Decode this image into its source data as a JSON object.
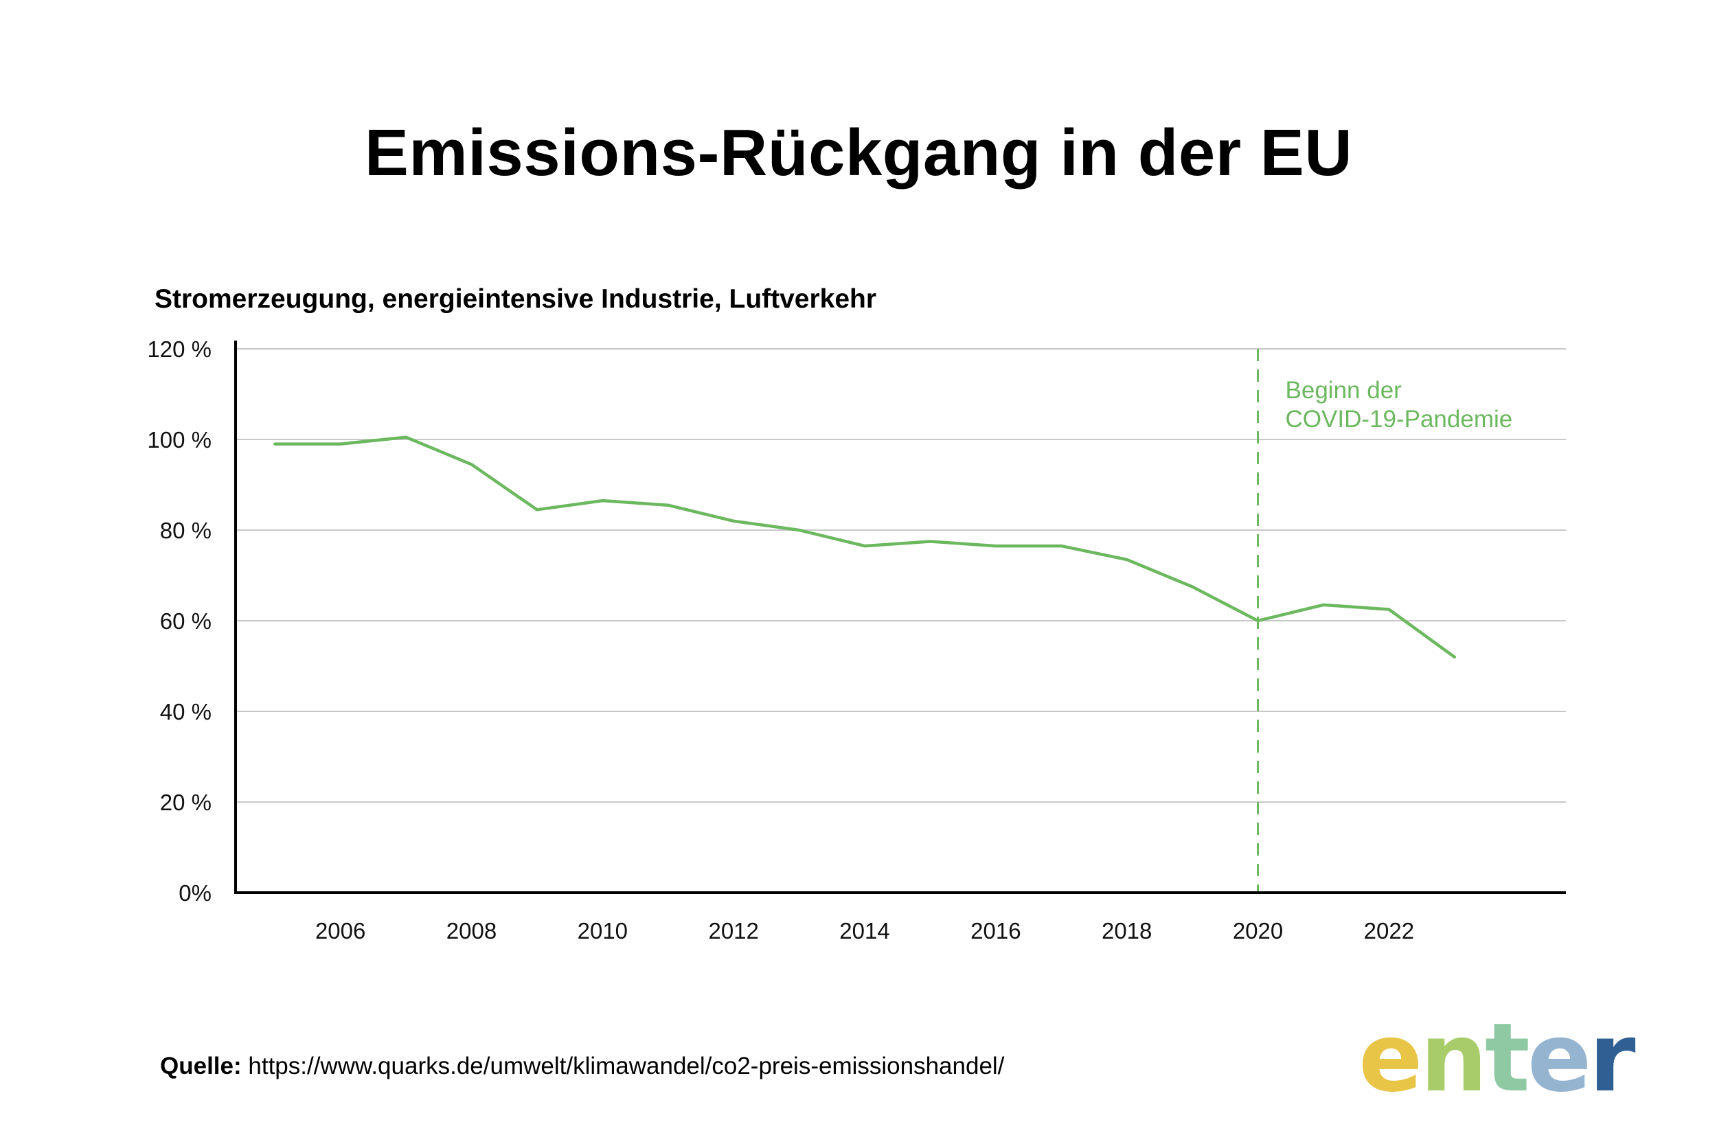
{
  "title": "Emissions-Rückgang in der EU",
  "subtitle": "Stromerzeugung, energieintensive Industrie, Luftverkehr",
  "source": {
    "label": "Quelle:",
    "url": "https://www.quarks.de/umwelt/klimawandel/co2-preis-emissionshandel/"
  },
  "logo": {
    "text": "enter",
    "letters": [
      "e",
      "n",
      "t",
      "e",
      "r"
    ],
    "colors": [
      "#e8c547",
      "#a9cc6a",
      "#8fc9a4",
      "#94b4d0",
      "#2f5f93"
    ]
  },
  "colors": {
    "line": "#6cb85f",
    "grid": "#c8c8c8",
    "axis": "#000000"
  },
  "chart_data": {
    "type": "line",
    "title": "Emissions-Rückgang in der EU",
    "subtitle": "Stromerzeugung, energieintensive Industrie, Luftverkehr",
    "xlabel": "",
    "ylabel": "",
    "x": [
      2005,
      2006,
      2007,
      2008,
      2009,
      2010,
      2011,
      2012,
      2013,
      2014,
      2015,
      2016,
      2017,
      2018,
      2019,
      2020,
      2021,
      2022,
      2023
    ],
    "values": [
      99,
      99,
      100.5,
      94.5,
      84.5,
      86.5,
      85.5,
      82,
      80,
      76.5,
      77.5,
      76.5,
      76.5,
      73.5,
      67.5,
      60,
      63.5,
      62.5,
      52
    ],
    "xlim": [
      2004.4,
      2024.7
    ],
    "ylim": [
      0,
      120
    ],
    "xticks": [
      2006,
      2008,
      2010,
      2012,
      2014,
      2016,
      2018,
      2020,
      2022
    ],
    "xtick_labels": [
      "2006",
      "2008",
      "2010",
      "2012",
      "2014",
      "2016",
      "2018",
      "2020",
      "2022"
    ],
    "yticks": [
      0,
      20,
      40,
      60,
      80,
      100,
      120
    ],
    "ytick_labels": [
      "0%",
      "20 %",
      "40 %",
      "60 %",
      "80 %",
      "100 %",
      "120 %"
    ],
    "grid": true,
    "annotation": {
      "x": 2020,
      "style": "dashed-vertical-line",
      "lines": [
        "Beginn der",
        "COVID-19-Pandemie"
      ]
    }
  }
}
